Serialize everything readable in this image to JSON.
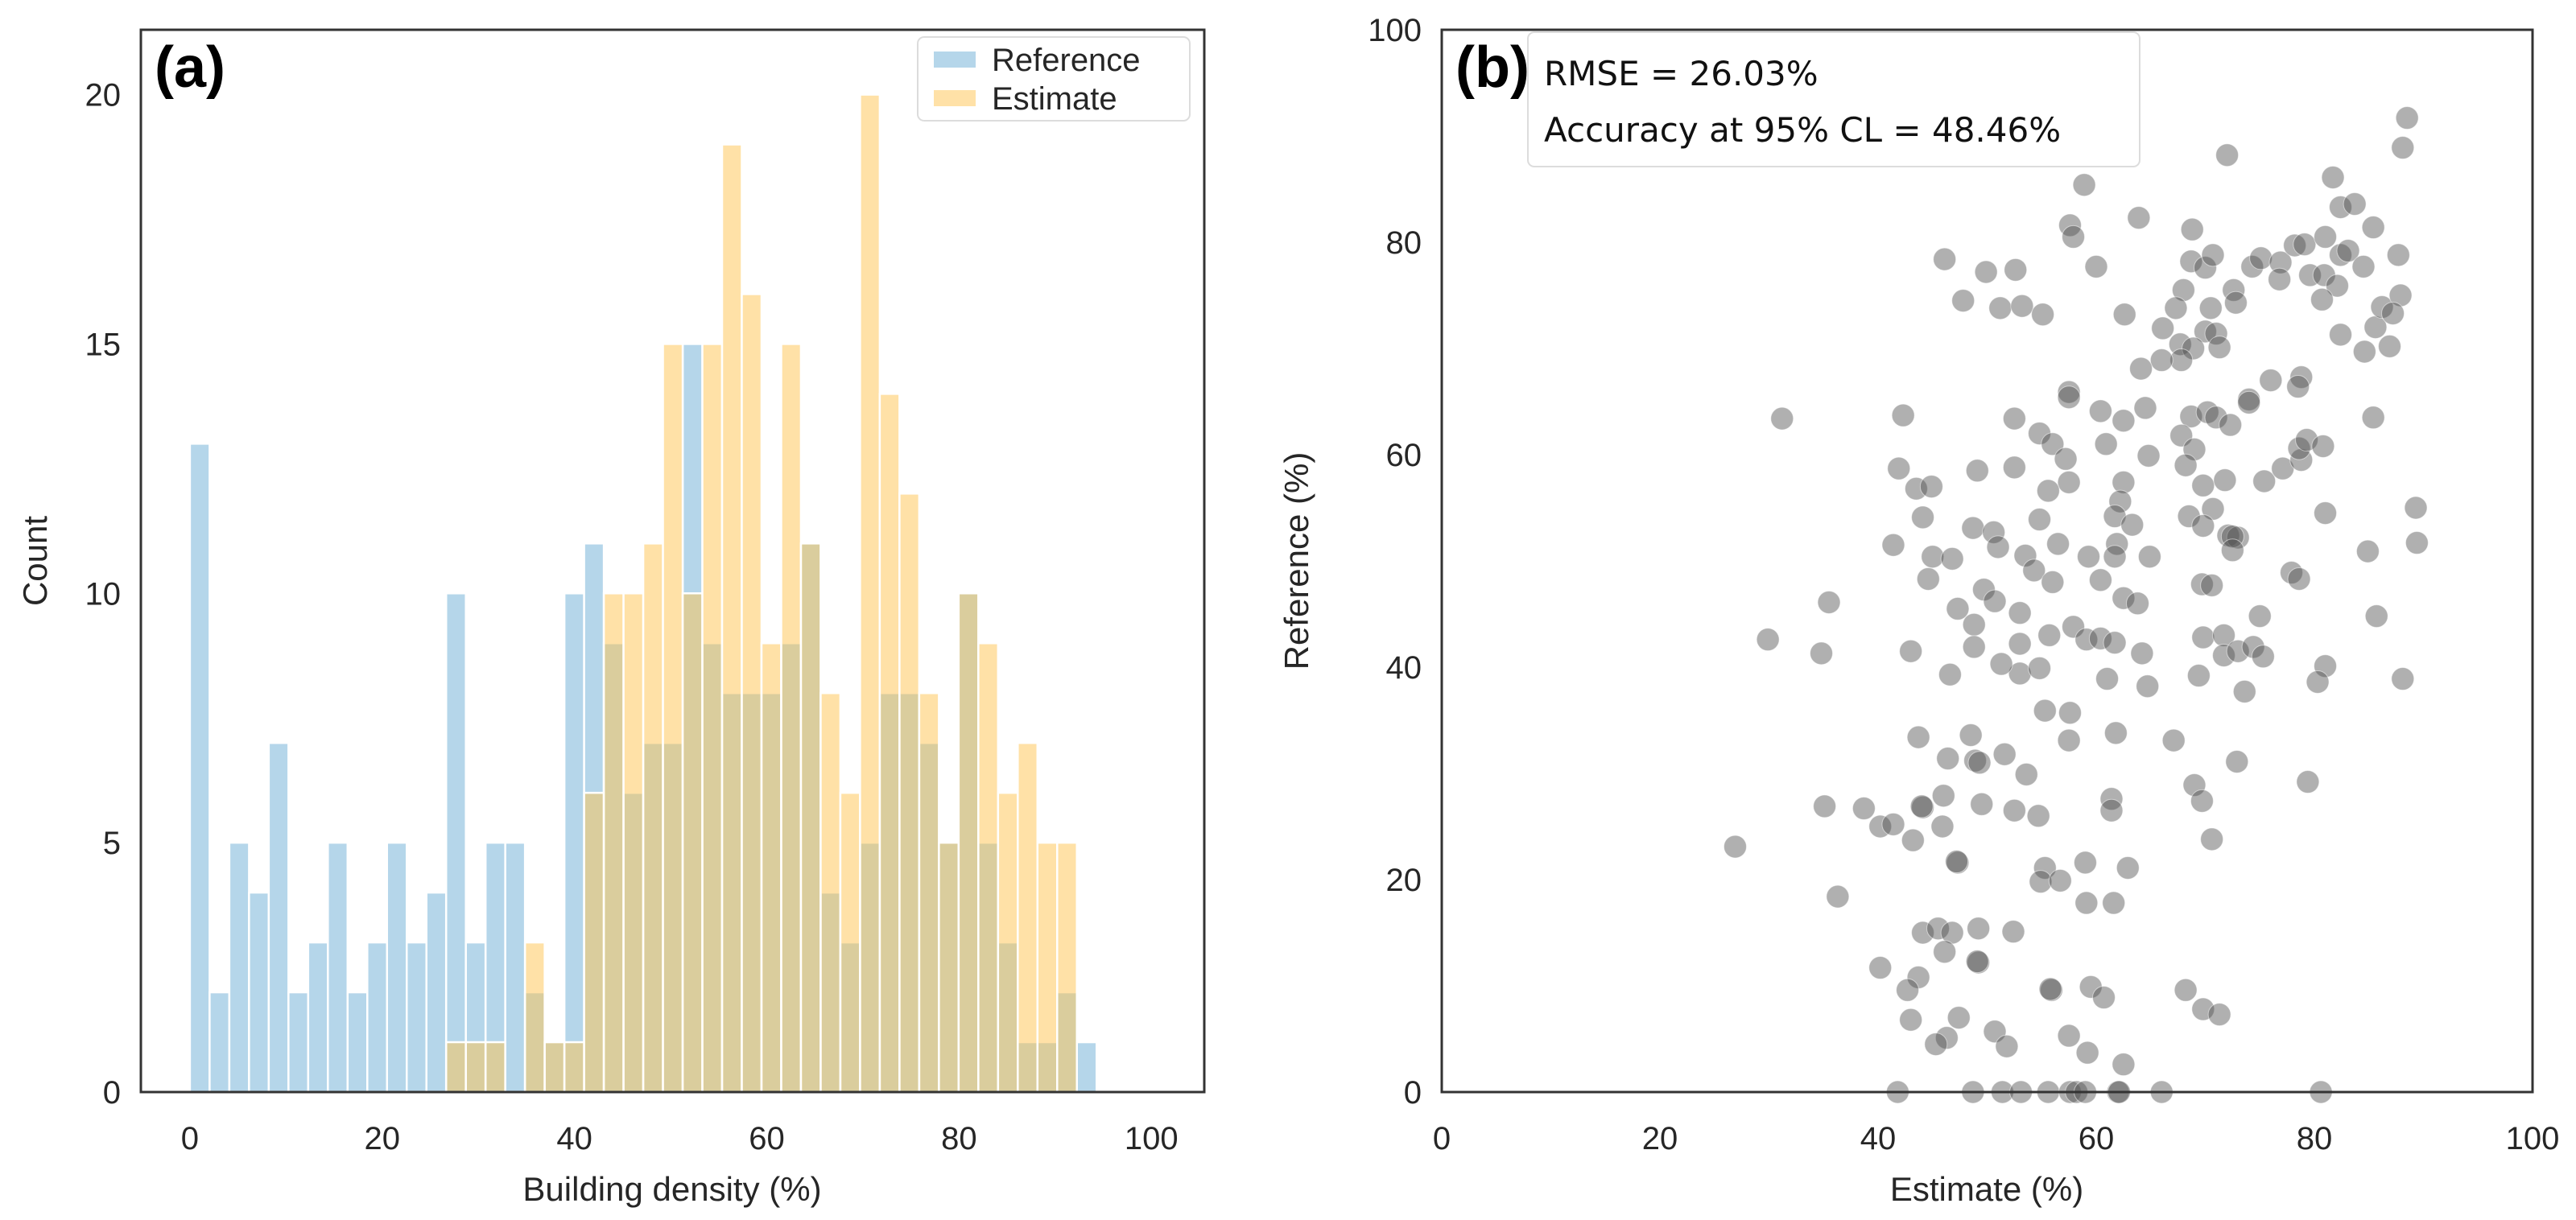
{
  "chart_data": [
    {
      "type": "bar",
      "subtype": "histogram",
      "panel_label": "(a)",
      "xlabel": "Building density (%)",
      "ylabel": "Count",
      "xlim": [
        -5.1,
        105.5
      ],
      "ylim": [
        0,
        21.3
      ],
      "xticks": [
        "0",
        "20",
        "40",
        "60",
        "80",
        "100"
      ],
      "yticks": [
        "0",
        "5",
        "10",
        "15",
        "20"
      ],
      "grid": false,
      "bin_start": 0,
      "bin_width": 2.05,
      "legend": {
        "position": "top-right",
        "entries": [
          "Reference",
          "Estimate"
        ]
      },
      "series": [
        {
          "name": "Reference",
          "color": "#6baed6",
          "values": [
            13,
            2,
            5,
            4,
            7,
            2,
            3,
            5,
            2,
            3,
            5,
            3,
            4,
            10,
            3,
            5,
            5,
            2,
            1,
            10,
            11,
            9,
            6,
            7,
            7,
            15,
            9,
            8,
            8,
            8,
            9,
            11,
            4,
            3,
            5,
            8,
            8,
            7,
            5,
            10,
            5,
            3,
            1,
            1,
            2,
            1
          ]
        },
        {
          "name": "Estimate",
          "color": "#ffc450",
          "values": [
            0,
            0,
            0,
            0,
            0,
            0,
            0,
            0,
            0,
            0,
            0,
            0,
            0,
            1,
            1,
            1,
            0,
            3,
            1,
            1,
            6,
            10,
            10,
            11,
            15,
            10,
            15,
            19,
            16,
            9,
            15,
            11,
            8,
            6,
            20,
            14,
            12,
            8,
            5,
            10,
            9,
            6,
            7,
            5,
            5,
            0
          ]
        }
      ]
    },
    {
      "type": "scatter",
      "panel_label": "(b)",
      "xlabel": "Estimate (%)",
      "ylabel": "Reference (%)",
      "xlim": [
        0,
        100
      ],
      "ylim": [
        0,
        100
      ],
      "xticks": [
        "0",
        "20",
        "40",
        "60",
        "80",
        "100"
      ],
      "yticks": [
        "0",
        "20",
        "40",
        "60",
        "80",
        "100"
      ],
      "grid": false,
      "point_color": "#505050",
      "annotation": [
        "RMSE = 26.03%",
        "Accuracy at 95% CL = 48.46%"
      ],
      "points": [
        [
          46.1,
          78.4
        ],
        [
          49.9,
          77.2
        ],
        [
          52.6,
          77.4
        ],
        [
          47.8,
          74.5
        ],
        [
          51.2,
          73.8
        ],
        [
          53.2,
          74.0
        ],
        [
          72.0,
          88.2
        ],
        [
          81.7,
          86.1
        ],
        [
          58.9,
          85.4
        ],
        [
          82.4,
          83.3
        ],
        [
          83.7,
          83.6
        ],
        [
          85.4,
          81.4
        ],
        [
          63.9,
          82.3
        ],
        [
          57.6,
          81.6
        ],
        [
          57.9,
          80.5
        ],
        [
          68.8,
          81.2
        ],
        [
          60.0,
          77.7
        ],
        [
          68.7,
          78.2
        ],
        [
          70.0,
          77.6
        ],
        [
          70.7,
          78.8
        ],
        [
          74.3,
          77.7
        ],
        [
          75.1,
          78.5
        ],
        [
          76.9,
          78.1
        ],
        [
          76.8,
          76.5
        ],
        [
          78.2,
          79.7
        ],
        [
          79.1,
          79.8
        ],
        [
          81.0,
          80.5
        ],
        [
          82.4,
          78.8
        ],
        [
          83.1,
          79.2
        ],
        [
          84.5,
          77.7
        ],
        [
          79.6,
          76.9
        ],
        [
          80.9,
          76.9
        ],
        [
          82.1,
          75.9
        ],
        [
          80.7,
          74.6
        ],
        [
          55.1,
          73.2
        ],
        [
          68.0,
          75.5
        ],
        [
          72.6,
          75.5
        ],
        [
          72.8,
          74.3
        ],
        [
          67.3,
          73.8
        ],
        [
          70.5,
          73.8
        ],
        [
          62.6,
          73.2
        ],
        [
          66.1,
          71.9
        ],
        [
          70.0,
          71.6
        ],
        [
          71.0,
          71.4
        ],
        [
          71.3,
          70.1
        ],
        [
          67.7,
          70.4
        ],
        [
          68.9,
          70.0
        ],
        [
          67.8,
          68.9
        ],
        [
          66.0,
          68.9
        ],
        [
          64.1,
          68.1
        ],
        [
          82.4,
          71.3
        ],
        [
          84.6,
          69.7
        ],
        [
          85.6,
          72.0
        ],
        [
          86.2,
          73.9
        ],
        [
          76.0,
          67.0
        ],
        [
          78.8,
          67.3
        ],
        [
          78.5,
          66.4
        ],
        [
          57.5,
          65.9
        ],
        [
          74.0,
          65.2
        ],
        [
          88.5,
          91.7
        ],
        [
          88.1,
          88.9
        ],
        [
          87.7,
          78.8
        ],
        [
          87.9,
          75.0
        ],
        [
          87.2,
          73.3
        ],
        [
          86.9,
          70.2
        ],
        [
          89.3,
          55.0
        ],
        [
          89.4,
          51.7
        ],
        [
          88.1,
          38.9
        ],
        [
          31.2,
          63.4
        ],
        [
          42.3,
          63.7
        ],
        [
          52.5,
          63.4
        ],
        [
          41.9,
          58.7
        ],
        [
          49.1,
          58.5
        ],
        [
          52.5,
          58.8
        ],
        [
          43.5,
          56.8
        ],
        [
          44.9,
          57.0
        ],
        [
          44.1,
          54.1
        ],
        [
          48.7,
          53.1
        ],
        [
          50.6,
          52.7
        ],
        [
          51.0,
          51.3
        ],
        [
          41.4,
          51.5
        ],
        [
          45.0,
          50.4
        ],
        [
          46.8,
          50.2
        ],
        [
          44.6,
          48.3
        ],
        [
          49.7,
          47.3
        ],
        [
          50.7,
          46.2
        ],
        [
          47.3,
          45.5
        ],
        [
          48.8,
          44.0
        ],
        [
          48.8,
          41.9
        ],
        [
          53.0,
          45.1
        ],
        [
          53.0,
          42.2
        ],
        [
          53.0,
          39.4
        ],
        [
          51.3,
          40.3
        ],
        [
          35.5,
          46.1
        ],
        [
          29.9,
          42.6
        ],
        [
          34.8,
          41.3
        ],
        [
          43.0,
          41.5
        ],
        [
          46.6,
          39.3
        ],
        [
          43.7,
          33.4
        ],
        [
          48.5,
          33.6
        ],
        [
          53.5,
          50.5
        ],
        [
          57.5,
          65.4
        ],
        [
          60.4,
          64.1
        ],
        [
          62.5,
          63.2
        ],
        [
          64.5,
          64.4
        ],
        [
          74.0,
          64.9
        ],
        [
          85.4,
          63.5
        ],
        [
          54.8,
          62.0
        ],
        [
          56.0,
          61.0
        ],
        [
          57.2,
          59.6
        ],
        [
          60.9,
          61.0
        ],
        [
          64.8,
          59.9
        ],
        [
          68.7,
          63.6
        ],
        [
          70.2,
          64.0
        ],
        [
          71.0,
          63.5
        ],
        [
          72.3,
          62.8
        ],
        [
          67.8,
          61.8
        ],
        [
          69.0,
          60.5
        ],
        [
          68.2,
          59.0
        ],
        [
          69.8,
          57.1
        ],
        [
          71.8,
          57.6
        ],
        [
          75.4,
          57.5
        ],
        [
          77.1,
          58.7
        ],
        [
          78.8,
          59.5
        ],
        [
          78.6,
          60.6
        ],
        [
          79.3,
          61.4
        ],
        [
          80.8,
          60.8
        ],
        [
          81.0,
          54.5
        ],
        [
          84.9,
          50.9
        ],
        [
          85.7,
          44.8
        ],
        [
          57.5,
          57.4
        ],
        [
          55.6,
          56.6
        ],
        [
          62.5,
          57.4
        ],
        [
          62.2,
          55.6
        ],
        [
          61.7,
          54.2
        ],
        [
          63.3,
          53.4
        ],
        [
          54.8,
          53.9
        ],
        [
          56.5,
          51.6
        ],
        [
          61.9,
          51.6
        ],
        [
          61.7,
          50.4
        ],
        [
          59.3,
          50.4
        ],
        [
          64.9,
          50.4
        ],
        [
          54.3,
          49.1
        ],
        [
          56.0,
          48.0
        ],
        [
          60.4,
          48.2
        ],
        [
          68.5,
          54.2
        ],
        [
          70.7,
          54.9
        ],
        [
          69.8,
          53.3
        ],
        [
          72.1,
          52.4
        ],
        [
          73.0,
          52.2
        ],
        [
          72.5,
          52.3
        ],
        [
          72.5,
          51.0
        ],
        [
          69.7,
          47.8
        ],
        [
          70.6,
          47.7
        ],
        [
          77.9,
          48.9
        ],
        [
          78.6,
          48.3
        ],
        [
          62.5,
          46.5
        ],
        [
          63.8,
          46.0
        ],
        [
          75.0,
          44.8
        ],
        [
          57.9,
          43.8
        ],
        [
          55.7,
          43.0
        ],
        [
          59.1,
          42.6
        ],
        [
          60.4,
          42.7
        ],
        [
          61.7,
          42.3
        ],
        [
          64.2,
          41.3
        ],
        [
          69.8,
          42.8
        ],
        [
          71.7,
          43.0
        ],
        [
          71.7,
          41.1
        ],
        [
          73.0,
          41.5
        ],
        [
          74.4,
          41.9
        ],
        [
          75.3,
          41.0
        ],
        [
          81.0,
          40.1
        ],
        [
          80.3,
          38.6
        ],
        [
          69.4,
          39.2
        ],
        [
          73.6,
          37.7
        ],
        [
          54.8,
          39.9
        ],
        [
          61.0,
          38.9
        ],
        [
          64.7,
          38.2
        ],
        [
          55.3,
          35.9
        ],
        [
          57.6,
          35.7
        ],
        [
          61.8,
          33.8
        ],
        [
          57.5,
          33.1
        ],
        [
          67.1,
          33.1
        ],
        [
          46.4,
          31.4
        ],
        [
          48.9,
          31.2
        ],
        [
          49.3,
          31.0
        ],
        [
          51.6,
          31.8
        ],
        [
          53.6,
          29.9
        ],
        [
          35.1,
          26.9
        ],
        [
          38.7,
          26.7
        ],
        [
          40.2,
          25.0
        ],
        [
          41.4,
          25.2
        ],
        [
          44.1,
          26.8
        ],
        [
          44.0,
          26.9
        ],
        [
          46.0,
          27.9
        ],
        [
          45.9,
          25.0
        ],
        [
          49.5,
          27.1
        ],
        [
          52.5,
          26.5
        ],
        [
          43.2,
          23.7
        ],
        [
          47.3,
          21.6
        ],
        [
          47.2,
          21.7
        ],
        [
          26.9,
          23.1
        ],
        [
          36.3,
          18.4
        ],
        [
          44.1,
          15.0
        ],
        [
          45.5,
          15.4
        ],
        [
          46.8,
          15.0
        ],
        [
          49.2,
          15.4
        ],
        [
          52.4,
          15.1
        ],
        [
          46.1,
          13.2
        ],
        [
          49.2,
          12.2
        ],
        [
          49.1,
          12.3
        ],
        [
          40.2,
          11.7
        ],
        [
          43.7,
          10.8
        ],
        [
          42.7,
          9.6
        ],
        [
          43.0,
          6.8
        ],
        [
          47.4,
          7.0
        ],
        [
          46.3,
          5.1
        ],
        [
          45.3,
          4.5
        ],
        [
          50.7,
          5.7
        ],
        [
          51.8,
          4.3
        ],
        [
          72.9,
          31.1
        ],
        [
          79.4,
          29.2
        ],
        [
          54.7,
          26.0
        ],
        [
          61.4,
          27.6
        ],
        [
          61.4,
          26.5
        ],
        [
          69.0,
          28.9
        ],
        [
          69.7,
          27.4
        ],
        [
          70.6,
          23.8
        ],
        [
          55.3,
          21.1
        ],
        [
          54.9,
          19.8
        ],
        [
          56.7,
          19.9
        ],
        [
          59.0,
          21.6
        ],
        [
          62.9,
          21.1
        ],
        [
          59.1,
          17.8
        ],
        [
          61.6,
          17.8
        ],
        [
          55.9,
          9.6
        ],
        [
          55.8,
          9.7
        ],
        [
          59.5,
          9.9
        ],
        [
          60.7,
          8.9
        ],
        [
          68.2,
          9.6
        ],
        [
          69.8,
          7.8
        ],
        [
          71.3,
          7.3
        ],
        [
          57.5,
          5.3
        ],
        [
          59.2,
          3.7
        ],
        [
          62.5,
          2.6
        ],
        [
          41.8,
          0
        ],
        [
          48.7,
          0
        ],
        [
          51.4,
          0
        ],
        [
          53.1,
          0
        ],
        [
          55.6,
          0
        ],
        [
          57.6,
          0
        ],
        [
          58.2,
          0
        ],
        [
          59.0,
          0
        ],
        [
          62.0,
          0
        ],
        [
          62.1,
          0
        ],
        [
          66.0,
          0
        ],
        [
          80.6,
          0
        ]
      ]
    }
  ]
}
